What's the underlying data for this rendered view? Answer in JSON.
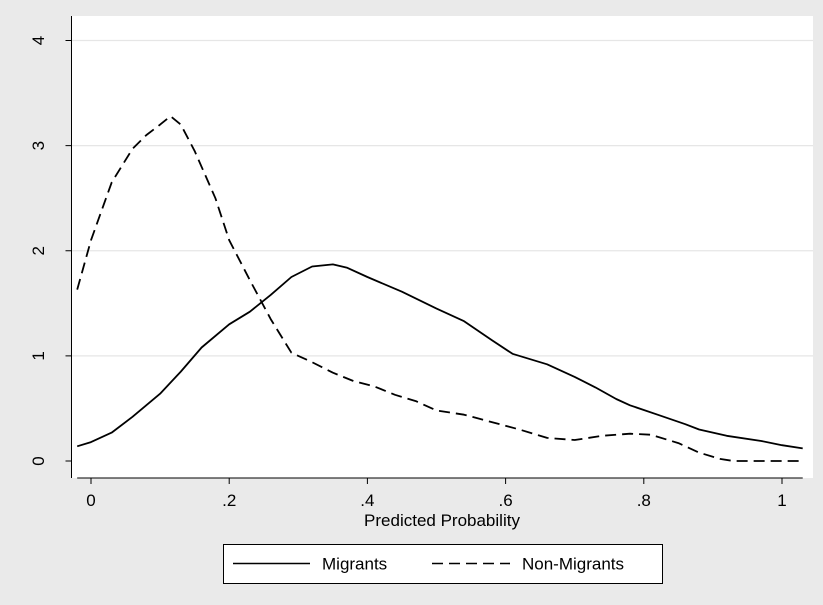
{
  "chart_data": {
    "type": "line",
    "xlabel": "Predicted Probability",
    "ylabel": "",
    "xlim": [
      -0.02,
      1.03
    ],
    "ylim": [
      0,
      4
    ],
    "x_ticks": [
      0,
      0.2,
      0.4,
      0.6,
      0.8,
      1.0
    ],
    "x_tick_labels": [
      "0",
      ".2",
      ".4",
      ".6",
      ".8",
      "1"
    ],
    "y_ticks": [
      0,
      1,
      2,
      3,
      4
    ],
    "y_tick_labels": [
      "0",
      "1",
      "2",
      "3",
      "4"
    ],
    "grid": "horizontal",
    "legend_position": "bottom",
    "colors": {
      "outer_background": "#eaeaea",
      "plot_background": "#ffffff",
      "gridline": "#e6e6e6",
      "line": "#000000"
    },
    "series": [
      {
        "name": "Migrants",
        "style": "solid",
        "x": [
          -0.02,
          0.0,
          0.03,
          0.06,
          0.1,
          0.13,
          0.16,
          0.2,
          0.23,
          0.26,
          0.29,
          0.32,
          0.35,
          0.37,
          0.4,
          0.45,
          0.5,
          0.54,
          0.58,
          0.61,
          0.66,
          0.7,
          0.73,
          0.76,
          0.78,
          0.82,
          0.86,
          0.88,
          0.92,
          0.97,
          1.0,
          1.03
        ],
        "y": [
          0.14,
          0.18,
          0.27,
          0.42,
          0.64,
          0.85,
          1.08,
          1.3,
          1.42,
          1.58,
          1.75,
          1.85,
          1.87,
          1.84,
          1.75,
          1.61,
          1.45,
          1.33,
          1.15,
          1.02,
          0.92,
          0.8,
          0.7,
          0.59,
          0.53,
          0.44,
          0.35,
          0.3,
          0.24,
          0.19,
          0.15,
          0.12
        ]
      },
      {
        "name": "Non-Migrants",
        "style": "dashed",
        "x": [
          -0.02,
          0.0,
          0.03,
          0.06,
          0.08,
          0.1,
          0.115,
          0.13,
          0.15,
          0.18,
          0.2,
          0.23,
          0.26,
          0.29,
          0.32,
          0.35,
          0.38,
          0.41,
          0.44,
          0.47,
          0.5,
          0.54,
          0.58,
          0.62,
          0.66,
          0.7,
          0.74,
          0.78,
          0.81,
          0.85,
          0.88,
          0.91,
          0.93,
          0.96,
          1.0,
          1.03
        ],
        "y": [
          1.63,
          2.1,
          2.65,
          2.97,
          3.1,
          3.2,
          3.28,
          3.2,
          2.95,
          2.5,
          2.1,
          1.72,
          1.35,
          1.03,
          0.94,
          0.84,
          0.76,
          0.71,
          0.63,
          0.57,
          0.48,
          0.44,
          0.37,
          0.3,
          0.22,
          0.2,
          0.24,
          0.26,
          0.25,
          0.17,
          0.08,
          0.02,
          0.0,
          0.0,
          0.0,
          0.0
        ]
      }
    ]
  }
}
